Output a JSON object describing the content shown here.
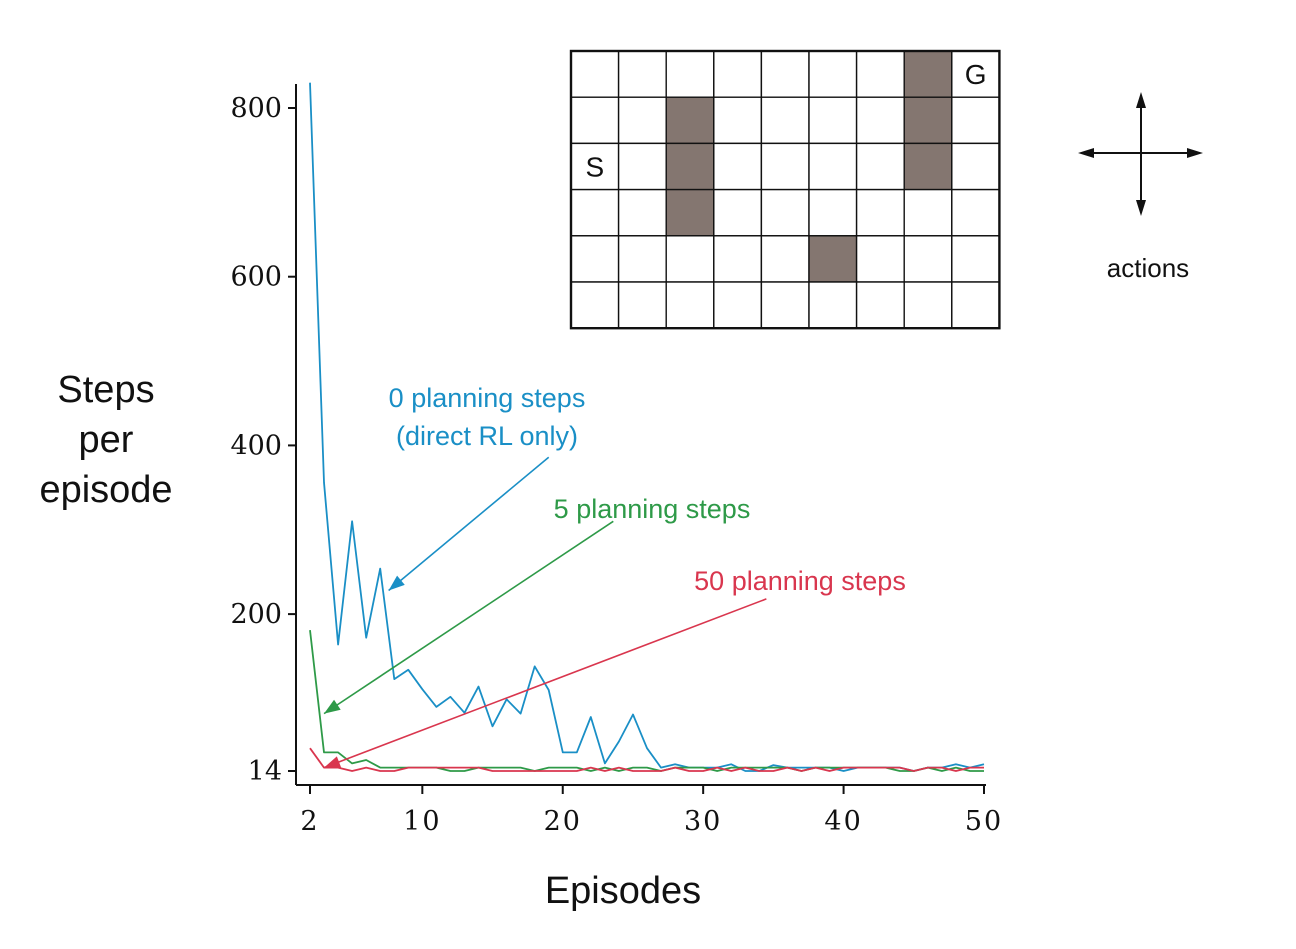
{
  "chart_data": {
    "type": "line",
    "xlabel": "Episodes",
    "ylabel_lines": [
      "Steps",
      "per",
      "episode"
    ],
    "xlim": [
      2,
      50
    ],
    "ylim": [
      14,
      830
    ],
    "xticks": [
      2,
      10,
      20,
      30,
      40,
      50
    ],
    "xtick_labels": [
      "2",
      "10",
      "20",
      "30",
      "40",
      "50"
    ],
    "yticks": [
      14,
      200,
      400,
      600,
      800
    ],
    "ytick_labels": [
      "14",
      "200",
      "400",
      "600",
      "800"
    ],
    "grid": false,
    "legend": "none",
    "x": [
      2,
      3,
      4,
      5,
      6,
      7,
      8,
      9,
      10,
      11,
      12,
      13,
      14,
      15,
      16,
      17,
      18,
      19,
      20,
      21,
      22,
      23,
      24,
      25,
      26,
      27,
      28,
      29,
      30,
      31,
      32,
      33,
      34,
      35,
      36,
      37,
      38,
      39,
      40,
      41,
      42,
      43,
      44,
      45,
      46,
      47,
      48,
      49,
      50
    ],
    "series": [
      {
        "key": "s0",
        "color": "#1a8fc6",
        "values": [
          830,
          356,
          164,
          310,
          172,
          254,
          123,
          134,
          111,
          90,
          102,
          83,
          114,
          67,
          99,
          82,
          138,
          110,
          36,
          36,
          78,
          23,
          49,
          81,
          41,
          18,
          22,
          18,
          18,
          18,
          22,
          14,
          14,
          21,
          18,
          18,
          18,
          18,
          14,
          18,
          18,
          18,
          18,
          14,
          18,
          18,
          22,
          18,
          22
        ]
      },
      {
        "key": "s5",
        "color": "#2e9a48",
        "values": [
          181,
          36,
          36,
          23,
          27,
          18,
          18,
          18,
          18,
          18,
          14,
          14,
          18,
          18,
          18,
          18,
          14,
          18,
          18,
          18,
          14,
          18,
          14,
          18,
          18,
          14,
          18,
          18,
          18,
          14,
          18,
          18,
          18,
          18,
          18,
          14,
          18,
          18,
          18,
          18,
          18,
          18,
          14,
          14,
          18,
          14,
          18,
          14,
          14
        ]
      },
      {
        "key": "s50",
        "color": "#d9364e",
        "values": [
          41,
          18,
          18,
          14,
          18,
          14,
          14,
          18,
          18,
          18,
          18,
          18,
          18,
          14,
          14,
          14,
          14,
          14,
          14,
          14,
          18,
          14,
          18,
          14,
          14,
          14,
          18,
          14,
          14,
          18,
          14,
          18,
          14,
          14,
          18,
          14,
          18,
          14,
          18,
          18,
          18,
          18,
          18,
          14,
          18,
          18,
          14,
          18,
          18
        ]
      }
    ],
    "annotations": [
      {
        "key": "a0",
        "lines": [
          "0 planning steps",
          "(direct RL only)"
        ],
        "color": "#1a8fc6",
        "arrow_from": [
          19.0,
          386
        ],
        "arrow_to": [
          7.6,
          228
        ]
      },
      {
        "key": "a5",
        "lines": [
          "5 planning steps"
        ],
        "color": "#2e9a48",
        "arrow_from": [
          23.6,
          310
        ],
        "arrow_to": [
          3.0,
          82
        ]
      },
      {
        "key": "a50",
        "lines": [
          "50 planning steps"
        ],
        "color": "#d9364e",
        "arrow_from": [
          34.5,
          218
        ],
        "arrow_to": [
          3.0,
          18
        ]
      }
    ]
  },
  "gridworld": {
    "rows": 6,
    "cols": 9,
    "obstacles": [
      [
        0,
        7
      ],
      [
        1,
        2
      ],
      [
        1,
        7
      ],
      [
        2,
        2
      ],
      [
        2,
        7
      ],
      [
        3,
        2
      ],
      [
        4,
        5
      ]
    ],
    "start": {
      "row": 2,
      "col": 0,
      "label": "S"
    },
    "goal": {
      "row": 0,
      "col": 8,
      "label": "G"
    },
    "obstacle_color": "#847670"
  },
  "actions_label": "actions"
}
